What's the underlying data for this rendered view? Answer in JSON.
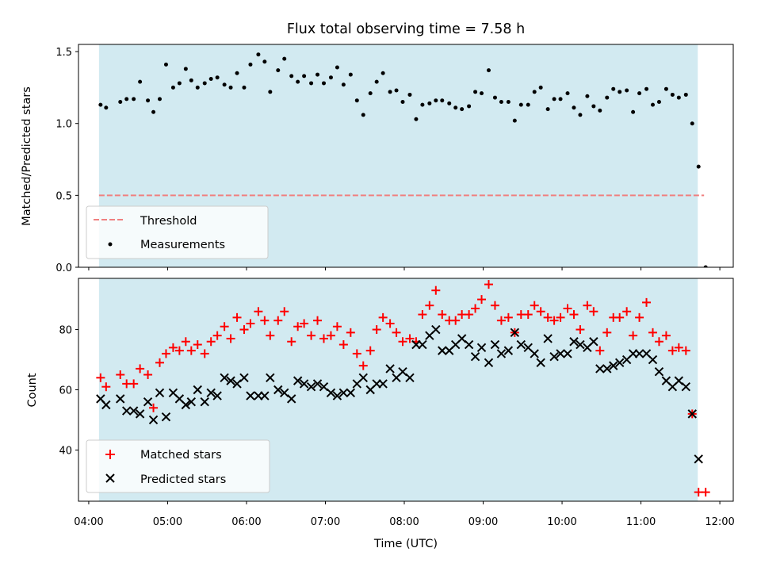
{
  "chart_data": {
    "title": "Flux total observing time = 7.58 h",
    "xlabel": "Time (UTC)",
    "x_unit": "hours UTC",
    "xlim": [
      3.87,
      12.17
    ],
    "xticks": [
      4,
      5,
      6,
      7,
      8,
      9,
      10,
      11,
      12
    ],
    "xtick_labels": [
      "04:00",
      "05:00",
      "06:00",
      "07:00",
      "08:00",
      "09:00",
      "10:00",
      "11:00",
      "12:00"
    ],
    "shaded_span": [
      4.13,
      11.72
    ],
    "shaded_color": "#add8e6",
    "panels": [
      {
        "type": "scatter",
        "ylabel": "Matched/Predicted stars",
        "ylim": [
          0,
          1.55
        ],
        "yticks": [
          0.0,
          0.5,
          1.0,
          1.5
        ],
        "ytick_labels": [
          "0.0",
          "0.5",
          "1.0",
          "1.5"
        ],
        "legend_position": "lower-left",
        "threshold": {
          "name": "Threshold",
          "value": 0.5,
          "x_range": [
            4.13,
            11.8
          ],
          "color": "#f08080"
        },
        "series": [
          {
            "name": "Measurements",
            "color": "#000000",
            "marker": "dot",
            "x": [
              4.15,
              4.22,
              4.4,
              4.48,
              4.57,
              4.65,
              4.75,
              4.82,
              4.9,
              4.98,
              5.07,
              5.15,
              5.23,
              5.3,
              5.38,
              5.47,
              5.55,
              5.63,
              5.72,
              5.8,
              5.88,
              5.97,
              6.05,
              6.15,
              6.23,
              6.3,
              6.4,
              6.48,
              6.57,
              6.65,
              6.73,
              6.82,
              6.9,
              6.98,
              7.07,
              7.15,
              7.23,
              7.32,
              7.4,
              7.48,
              7.57,
              7.65,
              7.73,
              7.82,
              7.9,
              7.98,
              8.07,
              8.15,
              8.23,
              8.32,
              8.4,
              8.48,
              8.57,
              8.65,
              8.73,
              8.82,
              8.9,
              8.98,
              9.07,
              9.15,
              9.23,
              9.32,
              9.4,
              9.48,
              9.57,
              9.65,
              9.73,
              9.82,
              9.9,
              9.98,
              10.07,
              10.15,
              10.23,
              10.32,
              10.4,
              10.48,
              10.57,
              10.65,
              10.73,
              10.82,
              10.9,
              10.98,
              11.07,
              11.15,
              11.23,
              11.32,
              11.4,
              11.48,
              11.57,
              11.65,
              11.73,
              11.82
            ],
            "y": [
              1.13,
              1.11,
              1.15,
              1.17,
              1.17,
              1.29,
              1.16,
              1.08,
              1.17,
              1.41,
              1.25,
              1.28,
              1.38,
              1.3,
              1.25,
              1.28,
              1.31,
              1.32,
              1.27,
              1.25,
              1.35,
              1.25,
              1.41,
              1.48,
              1.43,
              1.22,
              1.37,
              1.45,
              1.33,
              1.29,
              1.33,
              1.28,
              1.34,
              1.28,
              1.32,
              1.39,
              1.27,
              1.34,
              1.16,
              1.06,
              1.21,
              1.29,
              1.35,
              1.22,
              1.23,
              1.15,
              1.2,
              1.03,
              1.13,
              1.14,
              1.16,
              1.16,
              1.14,
              1.11,
              1.1,
              1.12,
              1.22,
              1.21,
              1.37,
              1.18,
              1.15,
              1.15,
              1.02,
              1.13,
              1.13,
              1.22,
              1.25,
              1.1,
              1.17,
              1.17,
              1.21,
              1.11,
              1.06,
              1.19,
              1.12,
              1.09,
              1.18,
              1.24,
              1.22,
              1.23,
              1.08,
              1.21,
              1.24,
              1.13,
              1.15,
              1.24,
              1.2,
              1.18,
              1.2,
              1.0,
              0.7,
              0.0
            ]
          }
        ]
      },
      {
        "type": "scatter",
        "ylabel": "Count",
        "ylim": [
          23,
          97
        ],
        "yticks": [
          40,
          60,
          80
        ],
        "ytick_labels": [
          "40",
          "60",
          "80"
        ],
        "legend_position": "lower-left",
        "series": [
          {
            "name": "Matched stars",
            "color": "#ff0000",
            "marker": "plus",
            "x": [
              4.15,
              4.22,
              4.4,
              4.48,
              4.57,
              4.65,
              4.75,
              4.82,
              4.9,
              4.98,
              5.07,
              5.15,
              5.23,
              5.3,
              5.38,
              5.47,
              5.55,
              5.63,
              5.72,
              5.8,
              5.88,
              5.97,
              6.05,
              6.15,
              6.23,
              6.3,
              6.4,
              6.48,
              6.57,
              6.65,
              6.73,
              6.82,
              6.9,
              6.98,
              7.07,
              7.15,
              7.23,
              7.32,
              7.4,
              7.48,
              7.57,
              7.65,
              7.73,
              7.82,
              7.9,
              7.98,
              8.07,
              8.15,
              8.23,
              8.32,
              8.4,
              8.48,
              8.57,
              8.65,
              8.73,
              8.82,
              8.9,
              8.98,
              9.07,
              9.15,
              9.23,
              9.32,
              9.4,
              9.48,
              9.57,
              9.65,
              9.73,
              9.82,
              9.9,
              9.98,
              10.07,
              10.15,
              10.23,
              10.32,
              10.4,
              10.48,
              10.57,
              10.65,
              10.73,
              10.82,
              10.9,
              10.98,
              11.07,
              11.15,
              11.23,
              11.32,
              11.4,
              11.48,
              11.57,
              11.65,
              11.73,
              11.82
            ],
            "y": [
              64,
              61,
              65,
              62,
              62,
              67,
              65,
              54,
              69,
              72,
              74,
              73,
              76,
              73,
              75,
              72,
              76,
              78,
              81,
              77,
              84,
              80,
              82,
              86,
              83,
              78,
              83,
              86,
              76,
              81,
              82,
              78,
              83,
              77,
              78,
              81,
              75,
              79,
              72,
              68,
              73,
              80,
              84,
              82,
              79,
              76,
              77,
              76,
              85,
              88,
              93,
              85,
              83,
              83,
              85,
              85,
              87,
              90,
              95,
              88,
              83,
              84,
              79,
              85,
              85,
              88,
              86,
              84,
              83,
              84,
              87,
              85,
              80,
              88,
              86,
              73,
              79,
              84,
              84,
              86,
              78,
              84,
              89,
              79,
              76,
              78,
              73,
              74,
              73,
              52,
              26,
              26
            ]
          },
          {
            "name": "Predicted stars",
            "color": "#000000",
            "marker": "x",
            "x": [
              4.15,
              4.22,
              4.4,
              4.48,
              4.57,
              4.65,
              4.75,
              4.82,
              4.9,
              4.98,
              5.07,
              5.15,
              5.23,
              5.3,
              5.38,
              5.47,
              5.55,
              5.63,
              5.72,
              5.8,
              5.88,
              5.97,
              6.05,
              6.15,
              6.23,
              6.3,
              6.4,
              6.48,
              6.57,
              6.65,
              6.73,
              6.82,
              6.9,
              6.98,
              7.07,
              7.15,
              7.23,
              7.32,
              7.4,
              7.48,
              7.57,
              7.65,
              7.73,
              7.82,
              7.9,
              7.98,
              8.07,
              8.15,
              8.23,
              8.32,
              8.4,
              8.48,
              8.57,
              8.65,
              8.73,
              8.82,
              8.9,
              8.98,
              9.07,
              9.15,
              9.23,
              9.32,
              9.4,
              9.48,
              9.57,
              9.65,
              9.73,
              9.82,
              9.9,
              9.98,
              10.07,
              10.15,
              10.23,
              10.32,
              10.4,
              10.48,
              10.57,
              10.65,
              10.73,
              10.82,
              10.9,
              10.98,
              11.07,
              11.15,
              11.23,
              11.32,
              11.4,
              11.48,
              11.57,
              11.65,
              11.73,
              11.82
            ],
            "y": [
              57,
              55,
              57,
              53,
              53,
              52,
              56,
              50,
              59,
              51,
              59,
              57,
              55,
              56,
              60,
              56,
              59,
              58,
              64,
              63,
              62,
              64,
              58,
              58,
              58,
              64,
              60,
              59,
              57,
              63,
              62,
              61,
              62,
              61,
              59,
              58,
              59,
              59,
              62,
              64,
              60,
              62,
              62,
              67,
              64,
              66,
              64,
              75,
              75,
              78,
              80,
              73,
              73,
              75,
              77,
              75,
              71,
              74,
              69,
              75,
              72,
              73,
              79,
              75,
              74,
              72,
              69,
              77,
              71,
              72,
              72,
              76,
              75,
              74,
              76,
              67,
              67,
              68,
              69,
              70,
              72,
              72,
              72,
              70,
              66,
              63,
              61,
              63,
              61,
              52,
              37,
              null
            ]
          }
        ]
      }
    ]
  }
}
